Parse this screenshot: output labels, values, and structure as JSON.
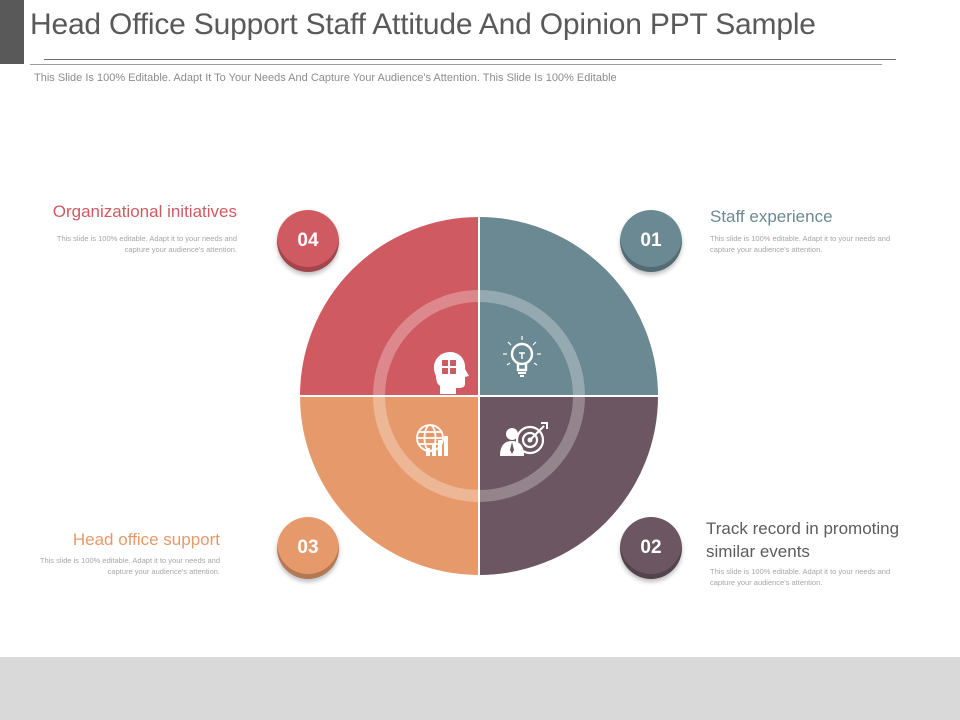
{
  "header": {
    "title": "Head Office Support Staff Attitude And Opinion PPT Sample",
    "subtitle": "This Slide Is 100% Editable. Adapt It To Your Needs And Capture Your Audience's Attention. This Slide Is 100% Editable"
  },
  "segments": [
    {
      "number": "01",
      "heading": "Staff experience",
      "description": "This slide is 100% editable. Adapt it to your needs and capture your audience's attention.",
      "color": "#6b8992",
      "icon": "lightbulb-icon"
    },
    {
      "number": "02",
      "heading": "Track record in promoting similar events",
      "description": "This slide is 100% editable. Adapt it to your needs and capture your audience's attention.",
      "color": "#6b5661",
      "icon": "businessman-target-icon"
    },
    {
      "number": "03",
      "heading": "Head office support",
      "description": "This slide is 100% editable. Adapt it to your needs and capture your audience's attention.",
      "color": "#e69a6c",
      "icon": "globe-chart-icon"
    },
    {
      "number": "04",
      "heading": "Organizational initiatives",
      "description": "This slide is 100% editable. Adapt it to your needs and capture your audience's attention.",
      "color": "#d05a62",
      "icon": "brain-puzzle-icon"
    }
  ]
}
